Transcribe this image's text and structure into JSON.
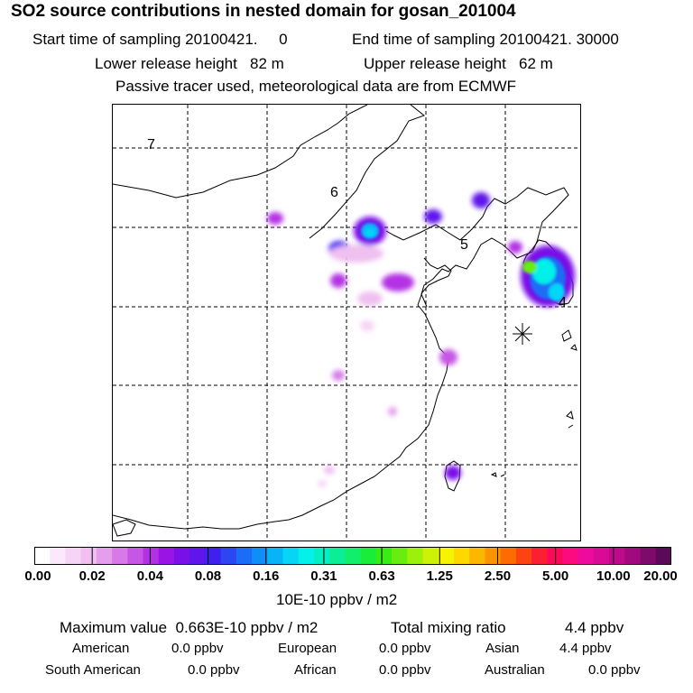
{
  "title": "SO2 source contributions in nested domain for gosan_201004",
  "sampling": {
    "start_label": "Start time of sampling",
    "start_value": "20100421.     0",
    "end_label": "End time of sampling",
    "end_value": "20100421. 30000"
  },
  "release": {
    "lower_label": "Lower release height",
    "lower_value": "82 m",
    "upper_label": "Upper release height",
    "upper_value": "62 m"
  },
  "note": "Passive tracer used, meteorological data are from ECMWF",
  "map": {
    "region_labels": [
      "7",
      "6",
      "5",
      "4"
    ],
    "receptor_marker": "station-star"
  },
  "colorbar": {
    "colors": [
      "#ffffff",
      "#fbe8fb",
      "#f5d4f5",
      "#efc0f0",
      "#e49eec",
      "#d77ae8",
      "#c656e6",
      "#b430e4",
      "#9a14e6",
      "#7a10e8",
      "#5e16ea",
      "#4020ee",
      "#2c46f2",
      "#1b6df5",
      "#0e8ff7",
      "#08b4f8",
      "#05d6f8",
      "#06f0ea",
      "#05f0c2",
      "#0aef96",
      "#10ee6a",
      "#1aec3a",
      "#38ec14",
      "#68ee0e",
      "#9cf00a",
      "#ccf206",
      "#f6f402",
      "#fcd800",
      "#fcb800",
      "#fc9400",
      "#fc6c00",
      "#fc4412",
      "#fc1e32",
      "#fc0a58",
      "#fc0a80",
      "#ee0a9c",
      "#d80a96",
      "#c00a8c",
      "#a00a7e",
      "#7e0a6c",
      "#5a0a58"
    ],
    "tick_labels": [
      "0.00",
      "0.02",
      "0.04",
      "0.08",
      "0.16",
      "0.31",
      "0.63",
      "1.25",
      "2.50",
      "5.00",
      "10.00",
      "20.00"
    ],
    "units": "10E-10 ppbv / m2"
  },
  "summary": {
    "max_label": "Maximum value",
    "max_value": "0.663E-10 ppbv / m2",
    "total_label": "Total mixing ratio",
    "total_value": "4.4 ppbv",
    "rows": [
      [
        {
          "name": "American",
          "value": "0.0 ppbv"
        },
        {
          "name": "European",
          "value": "0.0 ppbv"
        },
        {
          "name": "Asian",
          "value": "4.4 ppbv"
        }
      ],
      [
        {
          "name": "South American",
          "value": "0.0 ppbv"
        },
        {
          "name": "African",
          "value": "0.0 ppbv"
        },
        {
          "name": "Australian",
          "value": "0.0 ppbv"
        }
      ]
    ]
  }
}
